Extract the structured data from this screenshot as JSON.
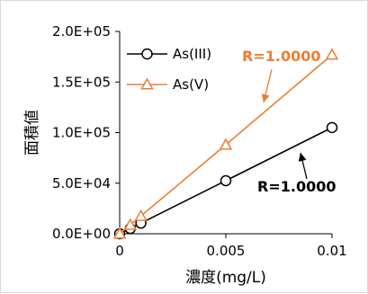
{
  "chart_data": {
    "type": "scatter",
    "xlabel": "濃度(mg/L)",
    "ylabel": "面積値",
    "xlim": [
      0,
      0.01
    ],
    "ylim": [
      0,
      200000
    ],
    "x_ticks": [
      "0",
      "0.005",
      "0.01"
    ],
    "y_ticks": [
      "0.0E+00",
      "5.0E+04",
      "1.0E+05",
      "1.5E+05",
      "2.0E+05"
    ],
    "x_tick_values": [
      0,
      0.005,
      0.01
    ],
    "y_tick_values": [
      0,
      50000,
      100000,
      150000,
      200000
    ],
    "grid": false,
    "legend_position": "top-left",
    "series": [
      {
        "name": "As(III)",
        "color": "#000000",
        "marker": "circle",
        "x": [
          0,
          0.0005,
          0.001,
          0.005,
          0.01
        ],
        "y": [
          0,
          5200,
          10500,
          52500,
          105000
        ]
      },
      {
        "name": "As(V)",
        "color": "#ed7d31",
        "marker": "triangle",
        "x": [
          0,
          0.0005,
          0.001,
          0.005,
          0.01
        ],
        "y": [
          0,
          8800,
          17500,
          88000,
          177000
        ]
      }
    ],
    "annotations": [
      {
        "text": "R=1.0000",
        "series": "As(V)",
        "color": "#ed7d31"
      },
      {
        "text": "R=1.0000",
        "series": "As(III)",
        "color": "#000000"
      }
    ]
  }
}
